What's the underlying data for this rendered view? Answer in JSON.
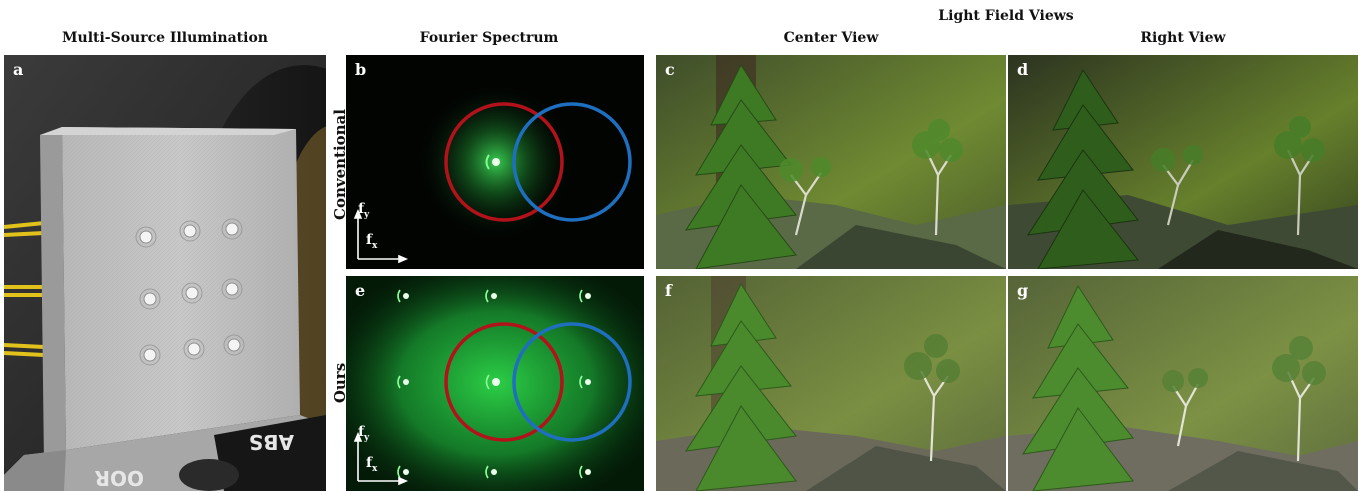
{
  "headers": {
    "col_a": "Multi-Source Illumination",
    "col_b": "Fourier Spectrum",
    "group": "Light Field Views",
    "col_c": "Center View",
    "col_d": "Right View"
  },
  "row_labels": {
    "top": "Conventional",
    "bottom": "Ours"
  },
  "panel_letters": {
    "a": "a",
    "b": "b",
    "c": "c",
    "d": "d",
    "e": "e",
    "f": "f",
    "g": "g"
  },
  "axis": {
    "fy_main": "f",
    "fy_sub": "y",
    "fx_main": "f",
    "fx_sub": "x"
  },
  "photo_text": {
    "prop_lower": "ABS",
    "prop_bottom": "OOR"
  },
  "colors": {
    "red_circle": "#b3121b",
    "blue_circle": "#1f6fc0",
    "spectrum_green": "#2fd34a",
    "scene_green": "#5a7a2a"
  }
}
